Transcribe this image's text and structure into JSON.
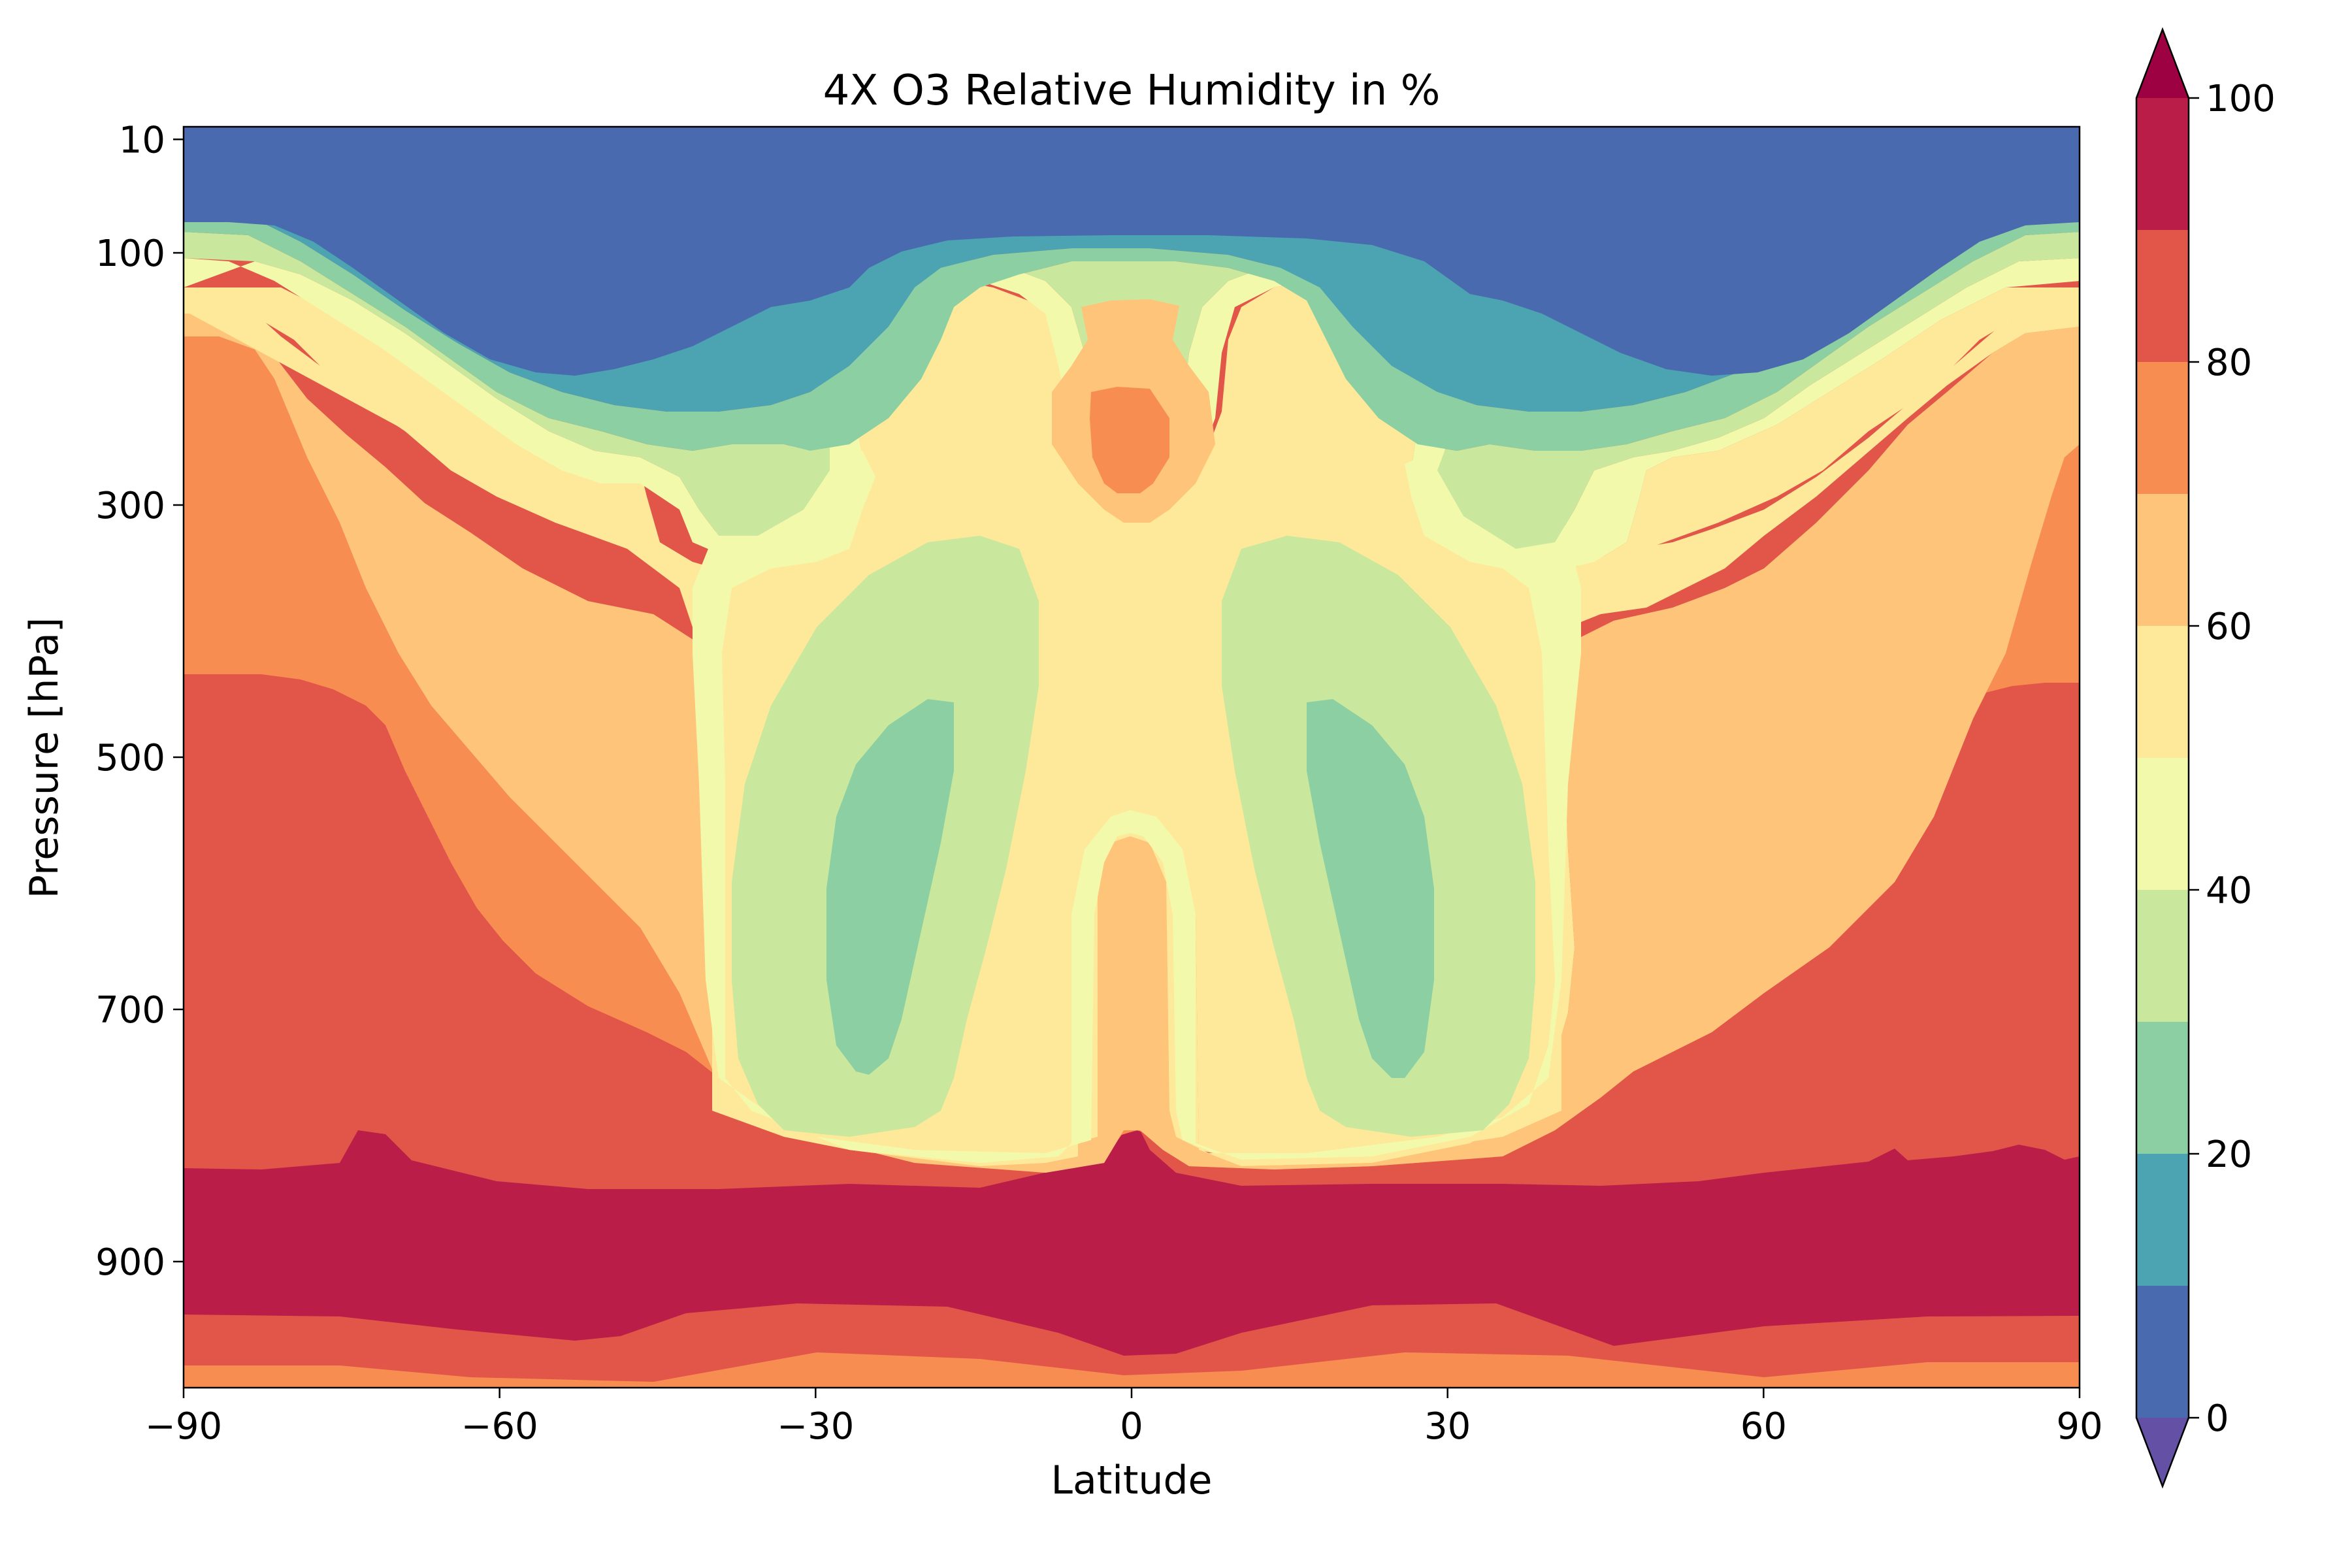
{
  "chart_data": {
    "type": "contourf",
    "title": "4X O3 Relative Humidity in %",
    "xlabel": "Latitude",
    "ylabel": "Pressure [hPa]",
    "xlim": [
      -90,
      90
    ],
    "ylim": [
      1000,
      0
    ],
    "xticks": [
      -90,
      -60,
      -30,
      0,
      30,
      60,
      90
    ],
    "xtick_labels": [
      "−90",
      "−60",
      "−30",
      "0",
      "30",
      "60",
      "90"
    ],
    "yticks": [
      10,
      100,
      300,
      500,
      700,
      900
    ],
    "ytick_labels": [
      "10",
      "100",
      "300",
      "500",
      "700",
      "900"
    ],
    "levels": [
      0,
      10,
      20,
      30,
      40,
      50,
      60,
      70,
      80,
      90,
      100
    ],
    "colors": [
      "#4a6aaf",
      "#4ca3b2",
      "#8ccfa2",
      "#c9e89d",
      "#f2f9ab",
      "#fee99a",
      "#fdc47a",
      "#f88d52",
      "#e25649",
      "#ba1d48"
    ],
    "extend_under_color": "#6450a4",
    "extend_over_color": "#9e0142",
    "colorbar": {
      "ticks": [
        0,
        20,
        40,
        60,
        80,
        100
      ],
      "tick_labels": [
        "0",
        "20",
        "40",
        "60",
        "80",
        "100"
      ],
      "extend": "both"
    },
    "field_summary": {
      "stratosphere_10_90hPa": "0-10",
      "equatorial_upper_max_200_290hPa": "70-80",
      "subtropical_minima_460_760hPa_at_lat_+-25": "20-30",
      "boundary_layer_830_950hPa": "90-100",
      "polar_lower_troposphere_450_830hPa": "80-90",
      "surface_layer_970_1000hPa": "70-90"
    }
  }
}
